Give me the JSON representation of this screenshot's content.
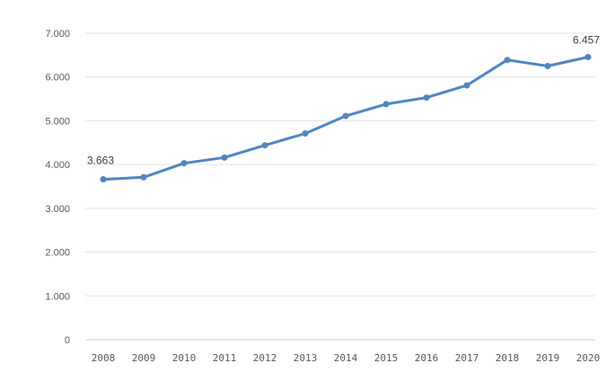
{
  "chart_data": {
    "type": "line",
    "title": "",
    "xlabel": "",
    "ylabel": "",
    "x": [
      "2008",
      "2009",
      "2010",
      "2011",
      "2012",
      "2013",
      "2014",
      "2015",
      "2016",
      "2017",
      "2018",
      "2019",
      "2020"
    ],
    "series": [
      {
        "values": [
          3663,
          3710,
          4030,
          4160,
          4440,
          4710,
          5110,
          5380,
          5530,
          5810,
          6390,
          6250,
          6457
        ],
        "color": "#4f86c1"
      }
    ],
    "ylim": [
      0,
      7000
    ],
    "y_ticks": [
      {
        "value": 0,
        "label": "0"
      },
      {
        "value": 1000,
        "label": "1.000"
      },
      {
        "value": 2000,
        "label": "2.000"
      },
      {
        "value": 3000,
        "label": "3.000"
      },
      {
        "value": 4000,
        "label": "4.000"
      },
      {
        "value": 5000,
        "label": "5.000"
      },
      {
        "value": 6000,
        "label": "6.000"
      },
      {
        "value": 7000,
        "label": "7.000"
      }
    ],
    "data_labels": [
      {
        "index": 0,
        "text": "3.663"
      },
      {
        "index": 12,
        "text": "6.457"
      }
    ],
    "grid": true,
    "legend": "none",
    "colors": {
      "line": "#4f86c1",
      "grid": "#e3e3e3",
      "axis": "#d0d0d0"
    }
  }
}
